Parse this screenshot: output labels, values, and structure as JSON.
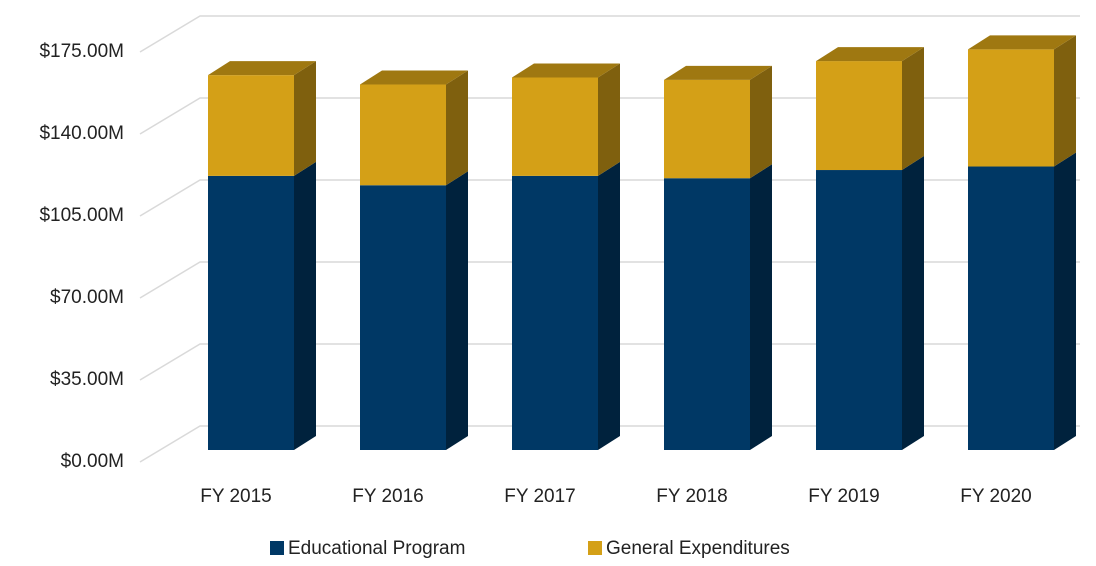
{
  "chart_data": {
    "type": "bar3d_stacked",
    "categories": [
      "FY 2015",
      "FY 2016",
      "FY 2017",
      "FY 2018",
      "FY 2019",
      "FY 2020"
    ],
    "series": [
      {
        "name": "Educational Program",
        "color": "#003865",
        "values": [
          117,
          113,
          117,
          116,
          119.5,
          121
        ]
      },
      {
        "name": "General Expenditures",
        "color": "#d4a017",
        "values": [
          43,
          43,
          42,
          42,
          46.5,
          50
        ]
      }
    ],
    "ylim": [
      0,
      175
    ],
    "yticks": [
      {
        "value": 0,
        "label": "$0.00M"
      },
      {
        "value": 35,
        "label": "$35.00M"
      },
      {
        "value": 70,
        "label": "$70.00M"
      },
      {
        "value": 105,
        "label": "$105.00M"
      },
      {
        "value": 140,
        "label": "$140.00M"
      },
      {
        "value": 175,
        "label": "$175.00M"
      }
    ],
    "grid": true,
    "legend": "bottom"
  }
}
